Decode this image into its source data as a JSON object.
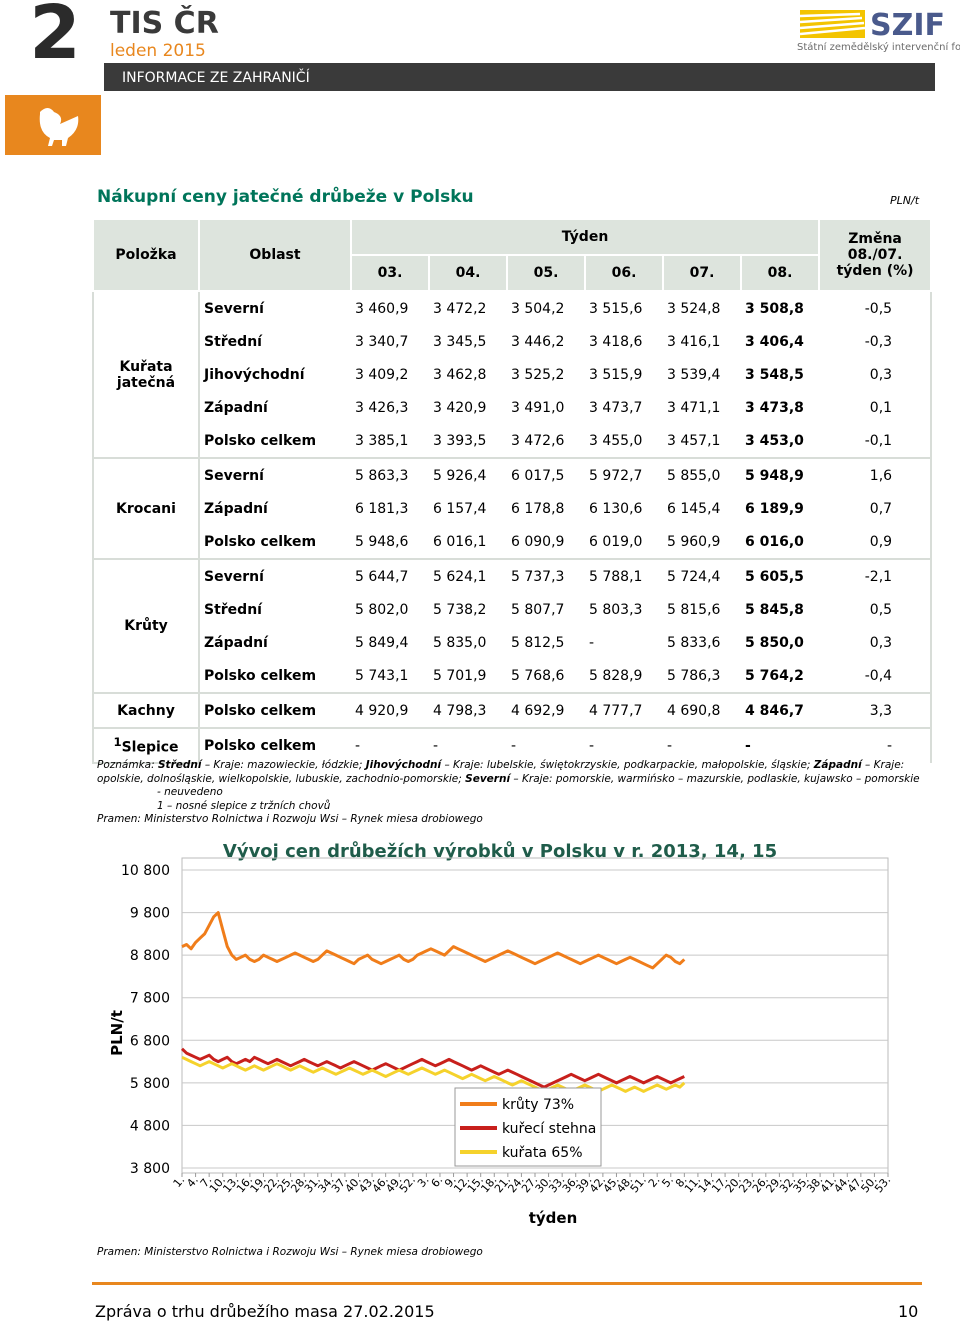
{
  "header": {
    "issue_number": "2",
    "brand": "TIS ČR",
    "date": "leden 2015",
    "band": "INFORMACE ZE ZAHRANIČÍ",
    "logo": "SZIF",
    "logo_sub": "Státní zemědělský intervenční fond"
  },
  "section": {
    "title": "Nákupní ceny jatečné drůbeže v Polsku",
    "unit": "PLN/t"
  },
  "table": {
    "head": {
      "item": "Položka",
      "region": "Oblast",
      "week": "Týden",
      "weeks": [
        "03.",
        "04.",
        "05.",
        "06.",
        "07.",
        "08."
      ],
      "change": "Změna 08./07. týden (%)"
    },
    "groups": [
      {
        "name": "Kuřata jatečná",
        "rows": [
          {
            "region": "Severní",
            "values": [
              "3 460,9",
              "3 472,2",
              "3 504,2",
              "3 515,6",
              "3 524,8",
              "3 508,8"
            ],
            "change": "-0,5"
          },
          {
            "region": "Střední",
            "values": [
              "3 340,7",
              "3 345,5",
              "3 446,2",
              "3 418,6",
              "3 416,1",
              "3 406,4"
            ],
            "change": "-0,3"
          },
          {
            "region": "Jihovýchodní",
            "values": [
              "3 409,2",
              "3 462,8",
              "3 525,2",
              "3 515,9",
              "3 539,4",
              "3 548,5"
            ],
            "change": "0,3"
          },
          {
            "region": "Západní",
            "values": [
              "3 426,3",
              "3 420,9",
              "3 491,0",
              "3 473,7",
              "3 471,1",
              "3 473,8"
            ],
            "change": "0,1"
          },
          {
            "region": "Polsko celkem",
            "values": [
              "3 385,1",
              "3 393,5",
              "3 472,6",
              "3 455,0",
              "3 457,1",
              "3 453,0"
            ],
            "change": "-0,1"
          }
        ]
      },
      {
        "name": "Krocani",
        "rows": [
          {
            "region": "Severní",
            "values": [
              "5 863,3",
              "5 926,4",
              "6 017,5",
              "5 972,7",
              "5 855,0",
              "5 948,9"
            ],
            "change": "1,6"
          },
          {
            "region": "Západní",
            "values": [
              "6 181,3",
              "6 157,4",
              "6 178,8",
              "6 130,6",
              "6 145,4",
              "6 189,9"
            ],
            "change": "0,7"
          },
          {
            "region": "Polsko celkem",
            "values": [
              "5 948,6",
              "6 016,1",
              "6 090,9",
              "6 019,0",
              "5 960,9",
              "6 016,0"
            ],
            "change": "0,9"
          }
        ]
      },
      {
        "name": "Krůty",
        "rows": [
          {
            "region": "Severní",
            "values": [
              "5 644,7",
              "5 624,1",
              "5 737,3",
              "5 788,1",
              "5 724,4",
              "5 605,5"
            ],
            "change": "-2,1"
          },
          {
            "region": "Střední",
            "values": [
              "5 802,0",
              "5 738,2",
              "5 807,7",
              "5 803,3",
              "5 815,6",
              "5 845,8"
            ],
            "change": "0,5"
          },
          {
            "region": "Západní",
            "values": [
              "5 849,4",
              "5 835,0",
              "5 812,5",
              "-",
              "5 833,6",
              "5 850,0"
            ],
            "change": "0,3"
          },
          {
            "region": "Polsko celkem",
            "values": [
              "5 743,1",
              "5 701,9",
              "5 768,6",
              "5 828,9",
              "5 786,3",
              "5 764,2"
            ],
            "change": "-0,4"
          }
        ]
      },
      {
        "name": "Kachny",
        "rows": [
          {
            "region": "Polsko celkem",
            "values": [
              "4 920,9",
              "4 798,3",
              "4 692,9",
              "4 777,7",
              "4 690,8",
              "4 846,7"
            ],
            "change": "3,3"
          }
        ]
      },
      {
        "marker": "1",
        "name": "Slepice",
        "rows": [
          {
            "region": "Polsko celkem",
            "values": [
              "-",
              "-",
              "-",
              "-",
              "-",
              "-"
            ],
            "change": "-"
          }
        ]
      }
    ]
  },
  "notes": {
    "lead": "Poznámka:",
    "parts": [
      "Střední",
      "– Kraje: mazowieckie, łódzkie;",
      "Jihovýchodní",
      "– Kraje: lubelskie, świętokrzyskie, podkarpackie, małopolskie, śląskie;",
      "Západní",
      "Kraje: opolskie, dolnośląskie, wielkopolskie, lubuskie, zachodnio-pomorskie;",
      "Severní",
      "– Kraje: pomorskie, warmińsko – mazurskie, podlaskie, kujawsko – pomorskie"
    ],
    "dash": "- neuvedeno",
    "footnote": "1 – nosné slepice z tržních chovů",
    "source": "Pramen: Ministerstvo Rolnictwa i Rozwoju Wsi – Rynek miesa drobiowego"
  },
  "chart_data": {
    "type": "line",
    "title": "Vývoj cen drůbežích výrobků v Polsku v r. 2013, 14, 15",
    "x_label": "týden",
    "y_label": "PLN/t",
    "ylim": [
      3800,
      10800
    ],
    "yticks": [
      {
        "value": 3800,
        "label": "3 800"
      },
      {
        "value": 4800,
        "label": "4 800"
      },
      {
        "value": 5800,
        "label": "5 800"
      },
      {
        "value": 6800,
        "label": "6 800"
      },
      {
        "value": 7800,
        "label": "7 800"
      },
      {
        "value": 8800,
        "label": "8 800"
      },
      {
        "value": 9800,
        "label": "9 800"
      },
      {
        "value": 10800,
        "label": "10 800"
      }
    ],
    "grid": true,
    "categories": [
      "1.",
      null,
      null,
      "4.",
      null,
      null,
      "7.",
      null,
      null,
      "10.",
      null,
      null,
      "13.",
      null,
      null,
      "16.",
      null,
      null,
      "19.",
      null,
      null,
      "22.",
      null,
      null,
      "25.",
      null,
      null,
      "28.",
      null,
      null,
      "31.",
      null,
      null,
      "34.",
      null,
      null,
      "37.",
      null,
      null,
      "40.",
      null,
      null,
      "43.",
      null,
      null,
      "46.",
      null,
      null,
      "49.",
      null,
      null,
      "52.",
      null,
      null,
      "3.",
      null,
      null,
      "6.",
      null,
      null,
      "9.",
      null,
      null,
      "12.",
      null,
      null,
      "15.",
      null,
      null,
      "18.",
      null,
      null,
      "21.",
      null,
      null,
      "24.",
      null,
      null,
      "27.",
      null,
      null,
      "30.",
      null,
      null,
      "33.",
      null,
      null,
      "36.",
      null,
      null,
      "39.",
      null,
      null,
      "42.",
      null,
      null,
      "45.",
      null,
      null,
      "48.",
      null,
      null,
      "51.",
      null,
      null,
      "2.",
      null,
      null,
      "5.",
      null,
      null,
      "8.",
      null,
      null,
      "11.",
      null,
      null,
      "14.",
      null,
      null,
      "17.",
      null,
      null,
      "20.",
      null,
      null,
      "23.",
      null,
      null,
      "26.",
      null,
      null,
      "29.",
      null,
      null,
      "32.",
      null,
      null,
      "35.",
      null,
      null,
      "38.",
      null,
      null,
      "41.",
      null,
      null,
      "44.",
      null,
      null,
      "47.",
      null,
      null,
      "50.",
      null,
      null,
      "53."
    ],
    "series": [
      {
        "name": "krůty 73%",
        "color": "#f07d1a",
        "values": [
          9000,
          9050,
          8950,
          9100,
          9200,
          9300,
          9500,
          9700,
          9800,
          9400,
          9000,
          8800,
          8700,
          8750,
          8800,
          8700,
          8650,
          8700,
          8800,
          8750,
          8700,
          8650,
          8700,
          8750,
          8800,
          8850,
          8800,
          8750,
          8700,
          8650,
          8700,
          8800,
          8900,
          8850,
          8800,
          8750,
          8700,
          8650,
          8600,
          8700,
          8750,
          8800,
          8700,
          8650,
          8600,
          8650,
          8700,
          8750,
          8800,
          8700,
          8650,
          8700,
          8800,
          8850,
          8900,
          8950,
          8900,
          8850,
          8800,
          8900,
          9000,
          8950,
          8900,
          8850,
          8800,
          8750,
          8700,
          8650,
          8700,
          8750,
          8800,
          8850,
          8900,
          8850,
          8800,
          8750,
          8700,
          8650,
          8600,
          8650,
          8700,
          8750,
          8800,
          8850,
          8800,
          8750,
          8700,
          8650,
          8600,
          8650,
          8700,
          8750,
          8800,
          8750,
          8700,
          8650,
          8600,
          8650,
          8700,
          8750,
          8700,
          8650,
          8600,
          8550,
          8500,
          8600,
          8700,
          8800,
          8750,
          8650,
          8600,
          8700,
          null,
          null,
          null,
          null,
          null,
          null,
          null,
          null,
          null,
          null,
          null,
          null,
          null,
          null,
          null,
          null,
          null,
          null,
          null,
          null,
          null,
          null,
          null,
          null,
          null,
          null,
          null,
          null,
          null,
          null,
          null,
          null,
          null,
          null,
          null,
          null,
          null,
          null,
          null,
          null,
          null,
          null,
          null,
          null,
          null
        ]
      },
      {
        "name": "kuřecí stehna",
        "color": "#c8201c",
        "values": [
          6600,
          6500,
          6450,
          6400,
          6350,
          6400,
          6450,
          6350,
          6300,
          6350,
          6400,
          6300,
          6250,
          6300,
          6350,
          6300,
          6400,
          6350,
          6300,
          6250,
          6300,
          6350,
          6300,
          6250,
          6200,
          6250,
          6300,
          6350,
          6300,
          6250,
          6200,
          6250,
          6300,
          6250,
          6200,
          6150,
          6200,
          6250,
          6300,
          6250,
          6200,
          6150,
          6100,
          6150,
          6200,
          6250,
          6200,
          6150,
          6100,
          6150,
          6200,
          6250,
          6300,
          6350,
          6300,
          6250,
          6200,
          6250,
          6300,
          6350,
          6300,
          6250,
          6200,
          6150,
          6100,
          6150,
          6200,
          6150,
          6100,
          6050,
          6000,
          6050,
          6100,
          6050,
          6000,
          5950,
          5900,
          5850,
          5800,
          5750,
          5700,
          5750,
          5800,
          5850,
          5900,
          5950,
          6000,
          5950,
          5900,
          5850,
          5900,
          5950,
          6000,
          5950,
          5900,
          5850,
          5800,
          5850,
          5900,
          5950,
          5900,
          5850,
          5800,
          5850,
          5900,
          5950,
          5900,
          5850,
          5800,
          5850,
          5900,
          5950,
          null,
          null,
          null,
          null,
          null,
          null,
          null,
          null,
          null,
          null,
          null,
          null,
          null,
          null,
          null,
          null,
          null,
          null,
          null,
          null,
          null,
          null,
          null,
          null,
          null,
          null,
          null,
          null,
          null,
          null,
          null,
          null,
          null,
          null,
          null,
          null,
          null,
          null,
          null,
          null,
          null,
          null,
          null,
          null,
          null
        ]
      },
      {
        "name": "kuřata 65%",
        "color": "#f5d22c",
        "values": [
          6400,
          6350,
          6300,
          6250,
          6200,
          6250,
          6300,
          6250,
          6200,
          6150,
          6200,
          6250,
          6200,
          6150,
          6100,
          6150,
          6200,
          6150,
          6100,
          6150,
          6200,
          6250,
          6200,
          6150,
          6100,
          6150,
          6200,
          6150,
          6100,
          6050,
          6100,
          6150,
          6100,
          6050,
          6000,
          6050,
          6100,
          6150,
          6100,
          6050,
          6000,
          6050,
          6100,
          6050,
          6000,
          5950,
          6000,
          6050,
          6100,
          6050,
          6000,
          6050,
          6100,
          6150,
          6100,
          6050,
          6000,
          6050,
          6100,
          6050,
          6000,
          5950,
          5900,
          5950,
          6000,
          5950,
          5900,
          5850,
          5900,
          5950,
          5900,
          5850,
          5800,
          5750,
          5800,
          5850,
          5800,
          5750,
          5700,
          5650,
          5600,
          5650,
          5700,
          5750,
          5700,
          5650,
          5600,
          5650,
          5700,
          5750,
          5700,
          5650,
          5600,
          5650,
          5700,
          5750,
          5700,
          5650,
          5600,
          5650,
          5700,
          5650,
          5600,
          5650,
          5700,
          5750,
          5700,
          5650,
          5700,
          5750,
          5700,
          5800,
          null,
          null,
          null,
          null,
          null,
          null,
          null,
          null,
          null,
          null,
          null,
          null,
          null,
          null,
          null,
          null,
          null,
          null,
          null,
          null,
          null,
          null,
          null,
          null,
          null,
          null,
          null,
          null,
          null,
          null,
          null,
          null,
          null,
          null,
          null,
          null,
          null,
          null,
          null,
          null,
          null,
          null,
          null,
          null,
          null
        ]
      }
    ]
  },
  "chart_source": "Pramen: Ministerstvo Rolnictwa i Rozwoju Wsi – Rynek miesa drobiowego",
  "footer": {
    "text": "Zpráva o trhu drůbežího masa 27.02.2015",
    "page": "10"
  }
}
